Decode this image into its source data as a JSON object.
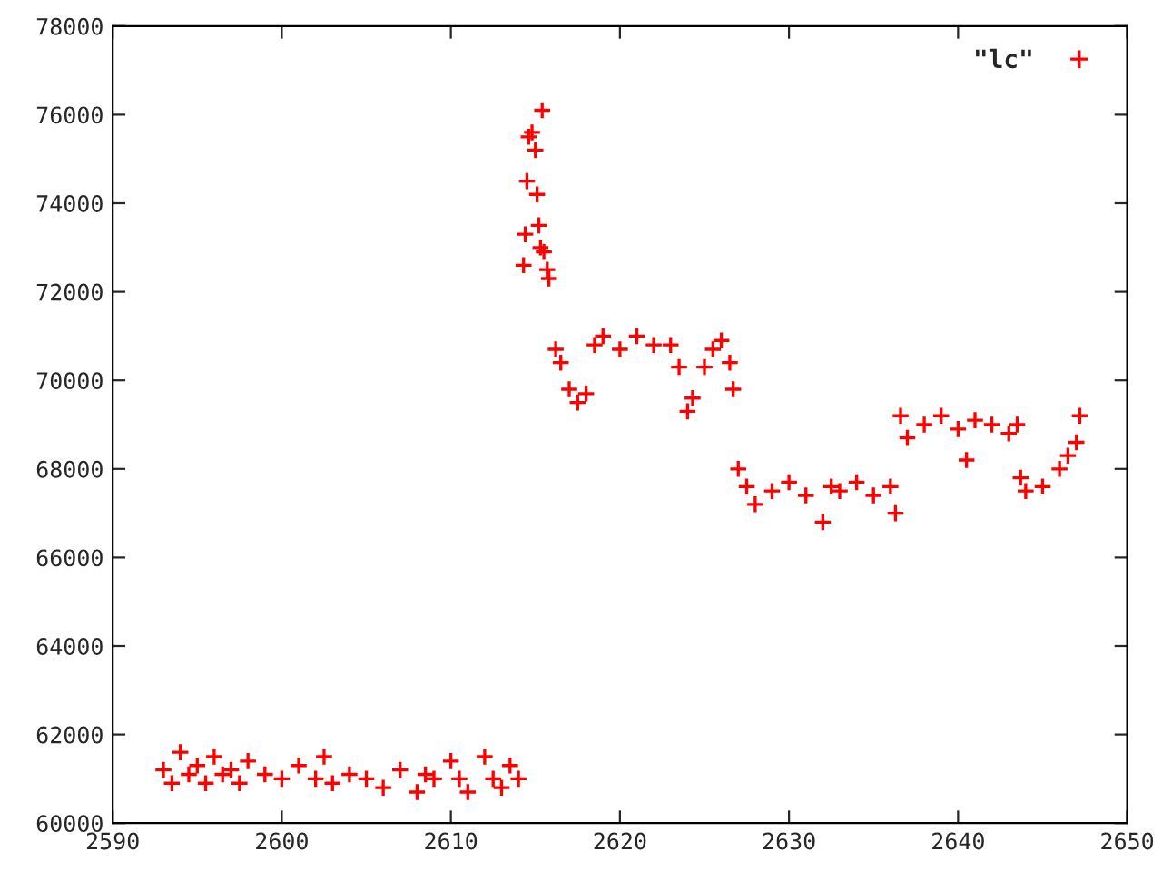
{
  "chart_data": {
    "type": "scatter",
    "marker": "cross",
    "legend": "top right",
    "grid": false,
    "xlim": [
      2590,
      2650
    ],
    "xticks": [
      2590,
      2600,
      2610,
      2620,
      2630,
      2640,
      2650
    ],
    "ylim": [
      60000,
      78000
    ],
    "yticks": [
      60000,
      62000,
      64000,
      66000,
      68000,
      70000,
      72000,
      74000,
      76000,
      78000
    ],
    "series": [
      {
        "name": "\"lc\"",
        "color": "#ff0000",
        "x": [
          2593.0,
          2593.5,
          2594.0,
          2594.5,
          2595.0,
          2595.5,
          2596.0,
          2596.5,
          2597.0,
          2597.5,
          2598.0,
          2599.0,
          2600.0,
          2601.0,
          2602.0,
          2602.5,
          2603.0,
          2604.0,
          2605.0,
          2606.0,
          2607.0,
          2608.0,
          2608.5,
          2609.0,
          2610.0,
          2610.5,
          2611.0,
          2612.0,
          2612.5,
          2613.0,
          2613.5,
          2614.0,
          2614.3,
          2614.4,
          2614.5,
          2614.6,
          2614.8,
          2615.0,
          2615.1,
          2615.2,
          2615.3,
          2615.4,
          2615.5,
          2615.7,
          2615.8,
          2616.2,
          2616.5,
          2617.0,
          2617.5,
          2618.0,
          2618.5,
          2619.0,
          2620.0,
          2621.0,
          2622.0,
          2623.0,
          2623.5,
          2624.0,
          2624.3,
          2625.0,
          2625.5,
          2626.0,
          2626.5,
          2626.7,
          2627.0,
          2627.5,
          2628.0,
          2629.0,
          2630.0,
          2631.0,
          2632.0,
          2632.5,
          2633.0,
          2634.0,
          2635.0,
          2636.0,
          2636.3,
          2636.6,
          2637.0,
          2638.0,
          2639.0,
          2640.0,
          2640.5,
          2641.0,
          2642.0,
          2643.0,
          2643.5,
          2643.7,
          2644.0,
          2645.0,
          2646.0,
          2646.5,
          2647.0,
          2647.2
        ],
        "values": [
          61200,
          60900,
          61600,
          61100,
          61300,
          60900,
          61500,
          61100,
          61200,
          60900,
          61400,
          61100,
          61000,
          61300,
          61000,
          61500,
          60900,
          61100,
          61000,
          60800,
          61200,
          60700,
          61100,
          61000,
          61400,
          61000,
          60700,
          61500,
          61000,
          60800,
          61300,
          61000,
          72600,
          73300,
          74500,
          75500,
          75600,
          75200,
          74200,
          73500,
          73000,
          76100,
          72900,
          72500,
          72300,
          70700,
          70400,
          69800,
          69500,
          69700,
          70800,
          71000,
          70700,
          71000,
          70800,
          70800,
          70300,
          69300,
          69600,
          70300,
          70700,
          70900,
          70400,
          69800,
          68000,
          67600,
          67200,
          67500,
          67700,
          67400,
          66800,
          67600,
          67500,
          67700,
          67400,
          67600,
          67000,
          69200,
          68700,
          69000,
          69200,
          68900,
          68200,
          69100,
          69000,
          68800,
          69000,
          67800,
          67500,
          67600,
          68000,
          68300,
          68600,
          69200
        ]
      }
    ]
  }
}
